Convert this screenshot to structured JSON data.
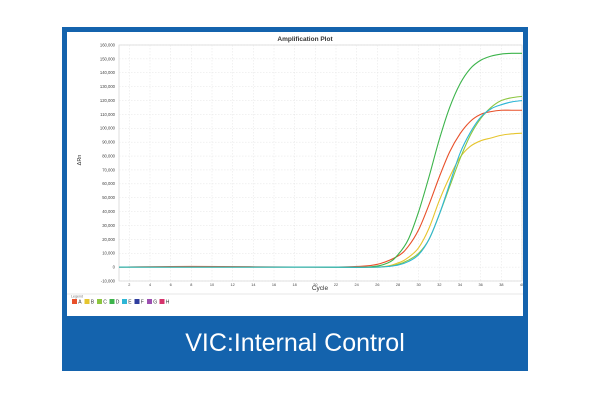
{
  "caption": "VIC:Internal Control",
  "colors": {
    "frame": "#1463ad",
    "grid": "#e3e3e3",
    "axis": "#888888"
  },
  "chart_data": {
    "type": "line",
    "title": "Amplification Plot",
    "xlabel": "Cycle",
    "ylabel": "ΔRn",
    "xlim": [
      1,
      40
    ],
    "ylim": [
      -10000,
      160000
    ],
    "xticks": [
      2,
      4,
      6,
      8,
      10,
      12,
      14,
      16,
      18,
      20,
      22,
      24,
      26,
      28,
      30,
      32,
      34,
      36,
      38,
      40
    ],
    "yticks": [
      -10000,
      0,
      10000,
      20000,
      30000,
      40000,
      50000,
      60000,
      70000,
      80000,
      90000,
      100000,
      110000,
      120000,
      130000,
      140000,
      150000,
      160000
    ],
    "ytick_labels": [
      "-10,000",
      "0",
      "10,000",
      "20,000",
      "30,000",
      "40,000",
      "50,000",
      "60,000",
      "70,000",
      "80,000",
      "90,000",
      "100,000",
      "110,000",
      "120,000",
      "130,000",
      "140,000",
      "150,000",
      "160,000"
    ],
    "grid": true,
    "legend_title": "Legend",
    "legend_position": "bottom",
    "legend": [
      {
        "label": "A",
        "color": "#e8502a"
      },
      {
        "label": "B",
        "color": "#e6c52e"
      },
      {
        "label": "C",
        "color": "#8cc63f"
      },
      {
        "label": "D",
        "color": "#3cb44b"
      },
      {
        "label": "E",
        "color": "#2eb6d6"
      },
      {
        "label": "F",
        "color": "#2f3e9e"
      },
      {
        "label": "G",
        "color": "#9b4fb0"
      },
      {
        "label": "H",
        "color": "#d6336c"
      }
    ],
    "series": [
      {
        "label": "A",
        "color": "#e8502a",
        "x": [
          1,
          8,
          20,
          24,
          26,
          28,
          29,
          30,
          31,
          32,
          33,
          34,
          35,
          36,
          37,
          38,
          39,
          40
        ],
        "y": [
          0,
          500,
          0,
          500,
          2000,
          8000,
          15000,
          27000,
          45000,
          65000,
          83000,
          96000,
          105000,
          110000,
          112000,
          113000,
          113000,
          113000
        ]
      },
      {
        "label": "B",
        "color": "#e6c52e",
        "x": [
          1,
          20,
          26,
          28,
          29,
          30,
          31,
          32,
          33,
          34,
          35,
          36,
          37,
          38,
          39,
          40
        ],
        "y": [
          0,
          0,
          0,
          3000,
          7000,
          14000,
          28000,
          48000,
          65000,
          79000,
          87000,
          91000,
          93000,
          95000,
          96000,
          96500
        ]
      },
      {
        "label": "C",
        "color": "#8cc63f",
        "x": [
          1,
          20,
          26,
          28,
          29,
          30,
          31,
          32,
          33,
          34,
          35,
          36,
          37,
          38,
          39,
          40
        ],
        "y": [
          0,
          0,
          0,
          2000,
          5000,
          10000,
          20000,
          38000,
          58000,
          78000,
          95000,
          107000,
          115000,
          120000,
          122000,
          123000
        ]
      },
      {
        "label": "D",
        "color": "#3cb44b",
        "x": [
          1,
          20,
          25,
          27,
          28,
          29,
          30,
          31,
          32,
          33,
          34,
          35,
          36,
          37,
          38,
          39,
          40
        ],
        "y": [
          0,
          0,
          0,
          3000,
          9000,
          20000,
          40000,
          65000,
          92000,
          115000,
          132000,
          143000,
          149000,
          152000,
          153500,
          154000,
          154000
        ]
      },
      {
        "label": "E",
        "color": "#2eb6d6",
        "x": [
          1,
          20,
          26,
          28,
          29,
          30,
          31,
          32,
          33,
          34,
          35,
          36,
          37,
          38,
          39,
          40
        ],
        "y": [
          0,
          0,
          0,
          1500,
          4000,
          9000,
          20000,
          38000,
          60000,
          82000,
          97000,
          108000,
          114000,
          117000,
          119000,
          120000
        ]
      }
    ]
  }
}
